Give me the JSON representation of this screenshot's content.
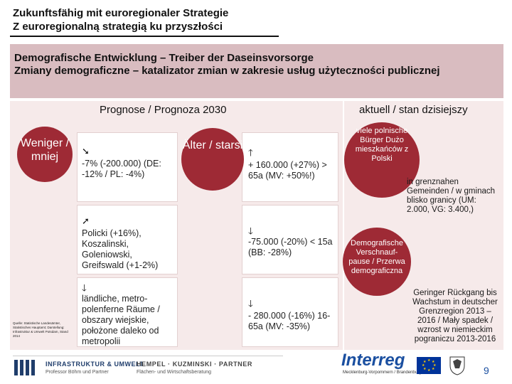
{
  "header": {
    "title_line1": "Zukunftsfähig mit euroregionaler Strategie",
    "title_line2": "Z euroregionalną strategią ku przyszłości"
  },
  "banner": {
    "line1": "Demografische Entwicklung – Treiber der Daseinsvorsorge",
    "line2": "Zmiany demograficzne – katalizator zmian w zakresie usług użyteczności publicznej"
  },
  "left": {
    "heading": "Prognose / Prognoza 2030",
    "circle_fewer": "Weniger / mniej",
    "circle_older": "Älter / starsi",
    "cells": [
      {
        "arrow": "➘",
        "text": "-7% (-200.000) (DE: -12% / PL: -4%)"
      },
      {
        "arrow": "➚",
        "text": "Policki (+16%), Koszalinski, Goleniowski, Greifswald (+1-2%)"
      },
      {
        "arrow": "🡓",
        "text": "ländliche, metro-polenferne Räume / obszary wiejskie, położone daleko od metropolii"
      },
      {
        "arrow": "🡑",
        "text": "+ 160.000 (+27%) > 65a (MV: +50%!)"
      },
      {
        "arrow": "🡓",
        "text": "-75.000 (-20%) < 15a (BB: -28%)"
      },
      {
        "arrow": "🡓",
        "text": "- 280.000 (-16%) 16-65a (MV: -35%)"
      }
    ],
    "source": "Quelle: Statistische Landesämter, Statistisches Hauptamt; Darstellung: Infrastruktur & Umwelt Potsdam, Stand 2014"
  },
  "right": {
    "heading": "aktuell / stan dzisiejszy",
    "circle1": "viele polnische Bürger Dużo mieszkańców z Polski",
    "text1": "in grenznahen Gemeinden / w gminach blisko granicy (UM: 2.000, VG: 3.400,)",
    "circle2": "Demografische Verschnauf-pause / Przerwa demograficzna",
    "text2": "Geringer Rückgang bis Wachstum in deutscher Grenzregion 2013 – 2016 / Mały spadek / wzrost w niemieckim pograniczu 2013-2016"
  },
  "footer": {
    "logo1_name": "INFRASTRUKTUR & UMWELT",
    "logo1_sub": "Professor Böhm und Partner",
    "logo2_name": "HEMPEL · KUZMINSKI · PARTNER",
    "logo2_sub": "Flächen- und Wirtschaftsberatung",
    "interreg": "Interreg",
    "interreg_sub": "Mecklenburg-Vorpommern / Brandenburg / Polska",
    "page_number": "9"
  },
  "colors": {
    "accent": "#9e2a35",
    "banner": "#d9bcc0",
    "panel": "#f6eaea",
    "interreg_blue": "#1a4fa0"
  }
}
